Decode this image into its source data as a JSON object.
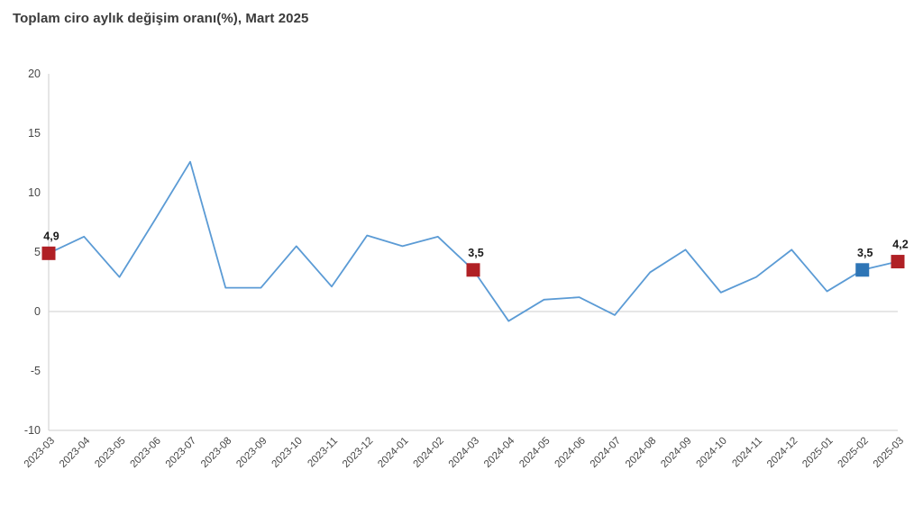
{
  "header": {
    "title": "Toplam ciro aylık değişim oranı(%), Mart 2025"
  },
  "colors": {
    "line": "#5b9bd5",
    "axis_line": "#d6d6d6",
    "tick_label": "#474747",
    "data_label": "#1a1a1a",
    "highlight_red": "#b02025",
    "highlight_blue": "#2e75b6",
    "background": "#ffffff"
  },
  "chart_data": {
    "type": "line",
    "title": "Toplam ciro aylık değişim oranı(%), Mart 2025",
    "xlabel": "",
    "ylabel": "",
    "x": [
      "2023-03",
      "2023-04",
      "2023-05",
      "2023-06",
      "2023-07",
      "2023-08",
      "2023-09",
      "2023-10",
      "2023-11",
      "2023-12",
      "2024-01",
      "2024-02",
      "2024-03",
      "2024-04",
      "2024-05",
      "2024-06",
      "2024-07",
      "2024-08",
      "2024-09",
      "2024-10",
      "2024-11",
      "2024-12",
      "2025-01",
      "2025-02",
      "2025-03"
    ],
    "values": [
      4.9,
      6.3,
      2.9,
      7.7,
      12.6,
      2.0,
      2.0,
      5.5,
      2.1,
      6.4,
      5.5,
      6.3,
      3.5,
      -0.8,
      1.0,
      1.2,
      -0.3,
      3.3,
      5.2,
      1.6,
      2.9,
      5.2,
      1.7,
      3.5,
      4.2
    ],
    "ylim": [
      -10,
      20
    ],
    "yticks": [
      20,
      15,
      10,
      5,
      0,
      -5,
      -10
    ],
    "grid": "zero-line-only",
    "legend_position": "none",
    "highlighted_points": [
      {
        "x": "2023-03",
        "value": 4.9,
        "label": "4,9",
        "color": "#b02025"
      },
      {
        "x": "2024-03",
        "value": 3.5,
        "label": "3,5",
        "color": "#b02025"
      },
      {
        "x": "2025-02",
        "value": 3.5,
        "label": "3,5",
        "color": "#2e75b6"
      },
      {
        "x": "2025-03",
        "value": 4.2,
        "label": "4,2",
        "color": "#b02025"
      }
    ]
  }
}
